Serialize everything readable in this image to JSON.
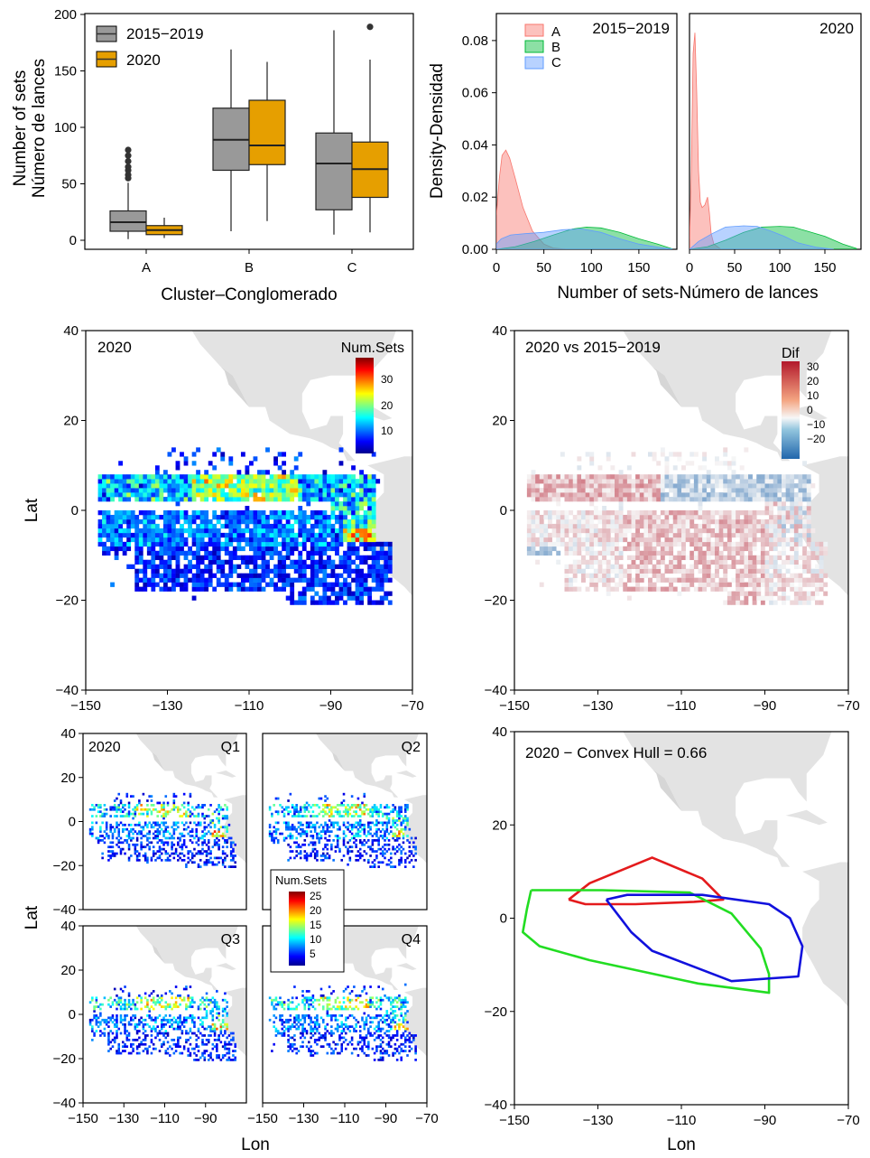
{
  "colors": {
    "grey_box": "#999999",
    "orange_box": "#E69F00",
    "dens_A": "#F8766D",
    "dens_B": "#00BA38",
    "dens_C": "#619CFF",
    "land": "#e3e3e3",
    "hull_red": "#e41a1c",
    "hull_green": "#22dd22",
    "hull_blue": "#1111dd"
  },
  "boxplot": {
    "type": "boxplot",
    "ylabel_1": "Number of sets",
    "ylabel_2": "Número de lances",
    "xlabel": "Cluster–Conglomerado",
    "ylim": [
      0,
      200
    ],
    "yticks": [
      "0",
      "50",
      "100",
      "150",
      "200"
    ],
    "categories": [
      "A",
      "B",
      "C"
    ],
    "legend": [
      "2015−2019",
      "2020"
    ],
    "groups": [
      {
        "cat": "A",
        "series": "2015−2019",
        "whisker_low": 1,
        "q1": 8,
        "median": 16,
        "q3": 26,
        "whisker_high": 51,
        "outliers": [
          55,
          58,
          62,
          65,
          70,
          75,
          80
        ]
      },
      {
        "cat": "A",
        "series": "2020",
        "whisker_low": 2,
        "q1": 5,
        "median": 9,
        "q3": 13,
        "whisker_high": 20,
        "outliers": []
      },
      {
        "cat": "B",
        "series": "2015−2019",
        "whisker_low": 8,
        "q1": 62,
        "median": 89,
        "q3": 117,
        "whisker_high": 169,
        "outliers": []
      },
      {
        "cat": "B",
        "series": "2020",
        "whisker_low": 17,
        "q1": 67,
        "median": 84,
        "q3": 124,
        "whisker_high": 158,
        "outliers": []
      },
      {
        "cat": "C",
        "series": "2015−2019",
        "whisker_low": 5,
        "q1": 27,
        "median": 68,
        "q3": 95,
        "whisker_high": 186,
        "outliers": []
      },
      {
        "cat": "C",
        "series": "2020",
        "whisker_low": 7,
        "q1": 38,
        "median": 63,
        "q3": 87,
        "whisker_high": 160,
        "outliers": [
          189
        ]
      }
    ]
  },
  "density": {
    "type": "area",
    "ylabel": "Density-Densidad",
    "xlabel": "Number of sets-Número de lances",
    "ylim": [
      0,
      0.09
    ],
    "xlim": [
      0,
      190
    ],
    "yticks": [
      "0.00",
      "0.02",
      "0.04",
      "0.06",
      "0.08"
    ],
    "xticks": [
      "0",
      "50",
      "100",
      "150"
    ],
    "legend": [
      "A",
      "B",
      "C"
    ],
    "panels": [
      {
        "title": "2015−2019",
        "series": [
          {
            "name": "A",
            "x": [
              0,
              3,
              6,
              10,
              14,
              20,
              28,
              38,
              50,
              60,
              75,
              90,
              100
            ],
            "y": [
              0.013,
              0.027,
              0.036,
              0.038,
              0.035,
              0.027,
              0.016,
              0.007,
              0.002,
              0.0005,
              0,
              0,
              0
            ]
          },
          {
            "name": "B",
            "x": [
              0,
              20,
              40,
              60,
              80,
              95,
              110,
              130,
              150,
              170,
              185
            ],
            "y": [
              0,
              0.001,
              0.003,
              0.0055,
              0.0078,
              0.0085,
              0.0082,
              0.0065,
              0.004,
              0.002,
              0.0002
            ]
          },
          {
            "name": "C",
            "x": [
              0,
              5,
              15,
              30,
              50,
              70,
              90,
              110,
              130,
              150,
              170,
              185
            ],
            "y": [
              0.002,
              0.004,
              0.0055,
              0.006,
              0.0065,
              0.0075,
              0.0078,
              0.0065,
              0.004,
              0.002,
              0.0008,
              0.0001
            ]
          }
        ]
      },
      {
        "title": "2020",
        "series": [
          {
            "name": "A",
            "x": [
              0,
              2,
              4,
              6,
              8,
              10,
              12,
              14,
              17,
              20,
              22,
              24,
              27,
              35
            ],
            "y": [
              0.003,
              0.03,
              0.075,
              0.083,
              0.06,
              0.03,
              0.018,
              0.016,
              0.017,
              0.02,
              0.014,
              0.006,
              0.002,
              0
            ]
          },
          {
            "name": "B",
            "x": [
              0,
              20,
              40,
              60,
              80,
              100,
              115,
              130,
              150,
              170,
              185
            ],
            "y": [
              0,
              0.001,
              0.0035,
              0.0065,
              0.0085,
              0.0088,
              0.0085,
              0.007,
              0.005,
              0.002,
              0.0003
            ]
          },
          {
            "name": "C",
            "x": [
              0,
              10,
              25,
              40,
              60,
              75,
              90,
              105,
              120,
              140,
              160
            ],
            "y": [
              0,
              0.003,
              0.006,
              0.0085,
              0.009,
              0.0088,
              0.007,
              0.005,
              0.0025,
              0.0008,
              0
            ]
          }
        ]
      }
    ]
  },
  "map_axes": {
    "ylabel": "Lat",
    "xlabel": "Lon",
    "xticks": [
      "−150",
      "−130",
      "−110",
      "−90",
      "−70"
    ],
    "yticks": [
      "−40",
      "−20",
      "0",
      "20",
      "40"
    ]
  },
  "map_2020": {
    "type": "heatmap",
    "label": "2020",
    "legend_title": "Num.Sets",
    "legend_ticks": [
      "30",
      "20",
      "10"
    ],
    "scale_max": 38
  },
  "map_diff": {
    "type": "heatmap",
    "label": "2020 vs 2015−2019",
    "legend_title": "Dif",
    "legend_ticks": [
      "30",
      "20",
      "10",
      "0",
      "−10",
      "−20"
    ]
  },
  "quarters": {
    "type": "heatmap",
    "label": "2020",
    "panels": [
      "Q1",
      "Q2",
      "Q3",
      "Q4"
    ],
    "legend_title": "Num.Sets",
    "legend_ticks": [
      "25",
      "20",
      "15",
      "10",
      "5"
    ],
    "xticks": [
      "−150",
      "−130",
      "−110",
      "−90",
      "−70"
    ],
    "yticks": [
      "−40",
      "−20",
      "0",
      "20",
      "40"
    ]
  },
  "hull": {
    "type": "line",
    "label": "2020 − Convex Hull = 0.66",
    "series": [
      {
        "name": "A",
        "color": "#e41a1c",
        "lon": [
          -137,
          -132,
          -117,
          -105,
          -100,
          -107,
          -121,
          -133,
          -137
        ],
        "lat": [
          4,
          7.5,
          13,
          8.5,
          4,
          3.5,
          3,
          3,
          4
        ]
      },
      {
        "name": "B",
        "color": "#22dd22",
        "lon": [
          -146,
          -129,
          -108,
          -98,
          -91,
          -89,
          -89,
          -106,
          -132,
          -144,
          -148,
          -147,
          -146
        ],
        "lat": [
          6,
          6,
          5.5,
          1,
          -6.5,
          -12,
          -16,
          -14,
          -9,
          -6,
          -3,
          2,
          6
        ]
      },
      {
        "name": "C",
        "color": "#1111dd",
        "lon": [
          -128,
          -123,
          -105,
          -89,
          -84,
          -81,
          -82,
          -98,
          -117,
          -122,
          -128
        ],
        "lat": [
          4,
          5,
          5,
          3,
          0,
          -6,
          -12.5,
          -13.5,
          -7,
          -3,
          4
        ]
      }
    ]
  }
}
